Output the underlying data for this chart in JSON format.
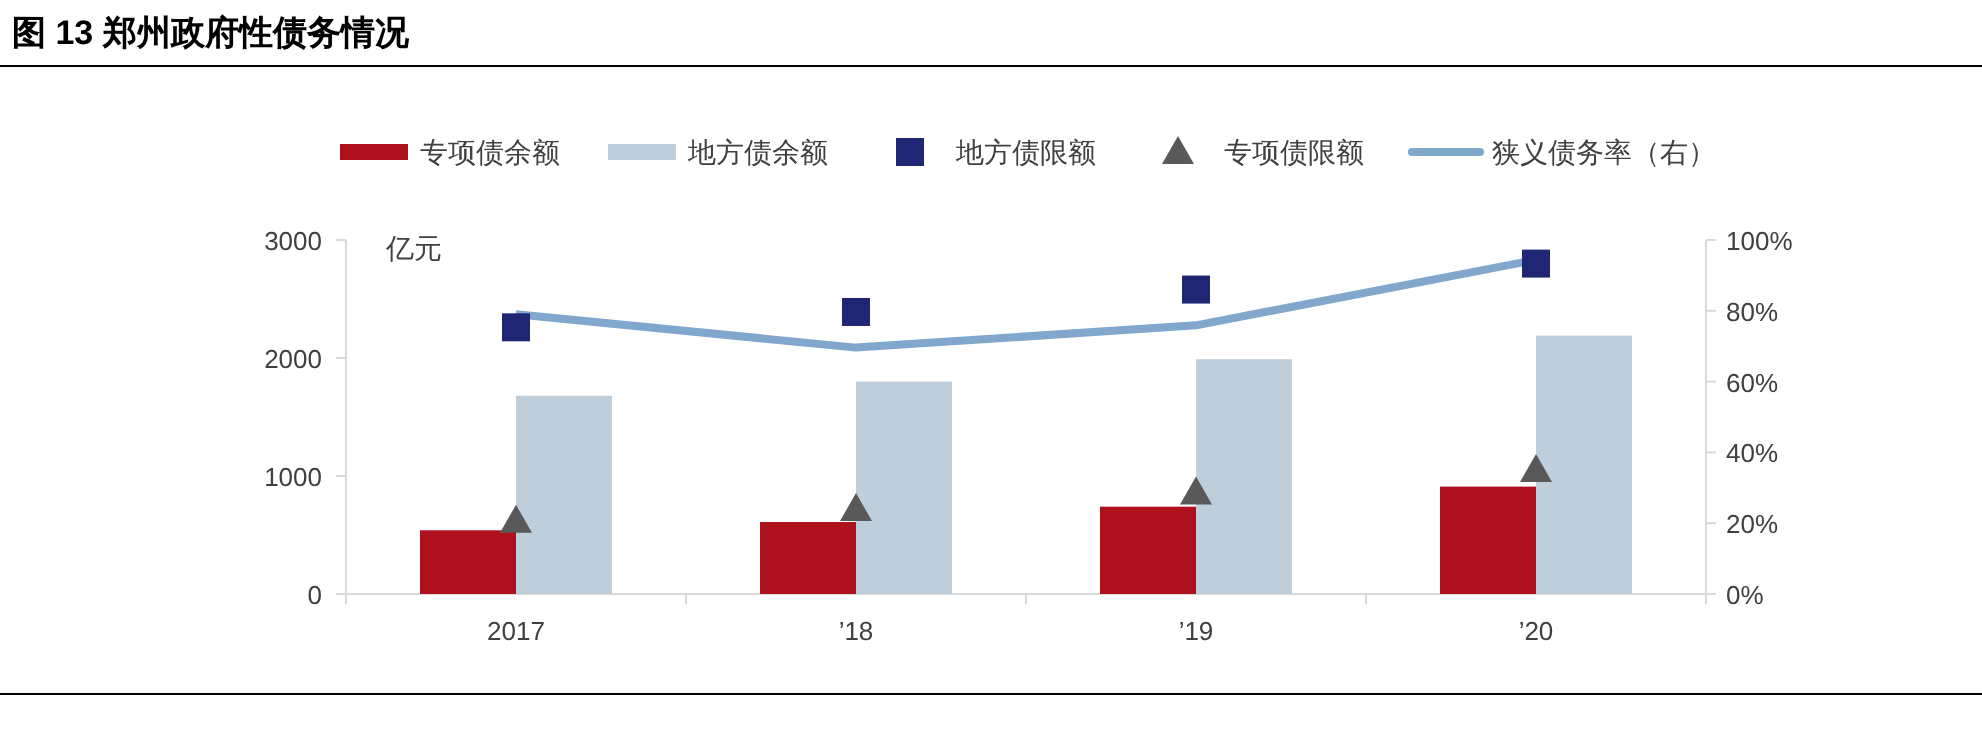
{
  "chart_data": {
    "type": "bar",
    "title": "图 13  郑州政府性债务情况",
    "ylabel": "亿元",
    "categories": [
      "2017",
      "’18",
      "’19",
      "’20"
    ],
    "series": [
      {
        "name": "专项债余额",
        "color": "#ae121e",
        "values": [
          540,
          610,
          740,
          910
        ]
      },
      {
        "name": "地方债余额",
        "color": "#bfcedb",
        "values": [
          1680,
          1800,
          1990,
          2190
        ]
      },
      {
        "name": "地方债限额",
        "type": "scatter",
        "marker": "square",
        "color": "#1f2674",
        "values": [
          2260,
          2390,
          2580,
          2800
        ]
      },
      {
        "name": "专项债限额",
        "type": "scatter",
        "marker": "triangle",
        "color": "#595959",
        "values": [
          620,
          720,
          860,
          1050
        ]
      },
      {
        "name": "狭义债务率（右）",
        "type": "line",
        "axis": "y2",
        "color": "#81a7cc",
        "values": [
          79,
          69.6,
          75.9,
          94.4
        ]
      }
    ],
    "ylim": [
      0,
      3000
    ],
    "yticks": [
      0,
      1000,
      2000,
      3000
    ],
    "y2lim": [
      0,
      100
    ],
    "y2ticks": [
      {
        "value": 0,
        "label": "0%"
      },
      {
        "value": 20,
        "label": "20%"
      },
      {
        "value": 40,
        "label": "40%"
      },
      {
        "value": 60,
        "label": "60%"
      },
      {
        "value": 80,
        "label": "80%"
      },
      {
        "value": 100,
        "label": "100%"
      }
    ],
    "legend": "top",
    "grid": false
  }
}
